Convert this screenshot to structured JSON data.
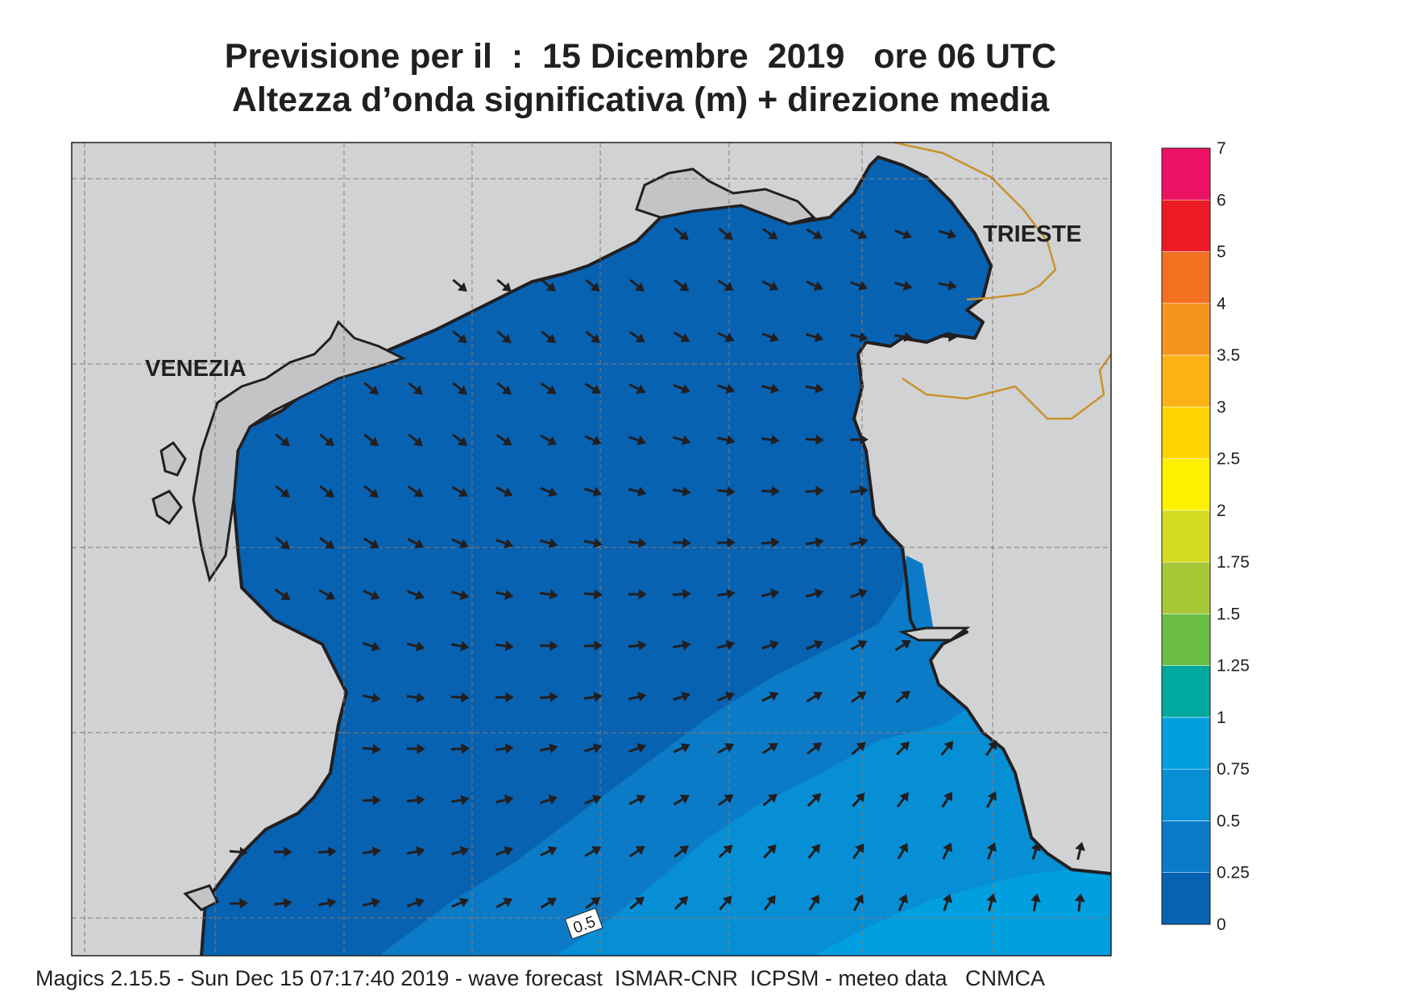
{
  "title_line1": "Previsione per il  :  15 Dicembre  2019   ore 06 UTC",
  "title_line2": "Altezza d’onda significativa (m) + direzione media",
  "cities": {
    "venezia": "VENEZIA",
    "trieste": "TRIESTE"
  },
  "contour_label": "0.5",
  "colors": {
    "land": "#d1d2d4",
    "sea_0": "#0762b2",
    "sea_025": "#0b7bc7",
    "sea_05": "#078fd6",
    "sea_075": "#00a0e0",
    "coast": "#231f20",
    "border": "#c8922a"
  },
  "legend": {
    "bins": [
      {
        "from": "0",
        "to": "0.25",
        "color": "#0762b2"
      },
      {
        "from": "0.25",
        "to": "0.5",
        "color": "#0b7bc7"
      },
      {
        "from": "0.5",
        "to": "0.75",
        "color": "#078fd6"
      },
      {
        "from": "0.75",
        "to": "1",
        "color": "#00a0e0"
      },
      {
        "from": "1",
        "to": "1.25",
        "color": "#00a99d"
      },
      {
        "from": "1.25",
        "to": "1.5",
        "color": "#6abd45"
      },
      {
        "from": "1.5",
        "to": "1.75",
        "color": "#a6c837"
      },
      {
        "from": "1.75",
        "to": "2",
        "color": "#d4dc21"
      },
      {
        "from": "2",
        "to": "2.5",
        "color": "#fff200"
      },
      {
        "from": "2.5",
        "to": "3",
        "color": "#ffd400"
      },
      {
        "from": "3",
        "to": "3.5",
        "color": "#fbb214"
      },
      {
        "from": "3.5",
        "to": "4",
        "color": "#f7941d"
      },
      {
        "from": "4",
        "to": "5",
        "color": "#f37021"
      },
      {
        "from": "5",
        "to": "6",
        "color": "#ed1c24"
      },
      {
        "from": "6",
        "to": "7",
        "color": "#ed1164"
      }
    ],
    "labels": [
      "0",
      "0.25",
      "0.5",
      "0.75",
      "1",
      "1.25",
      "1.5",
      "1.75",
      "2",
      "2.5",
      "3",
      "3.5",
      "4",
      "5",
      "6",
      "7"
    ]
  },
  "footer": "Magics 2.15.5 - Sun Dec 15 07:17:40 2019 - wave forecast  ISMAR-CNR  ICPSM - meteo data   CNMCA"
}
